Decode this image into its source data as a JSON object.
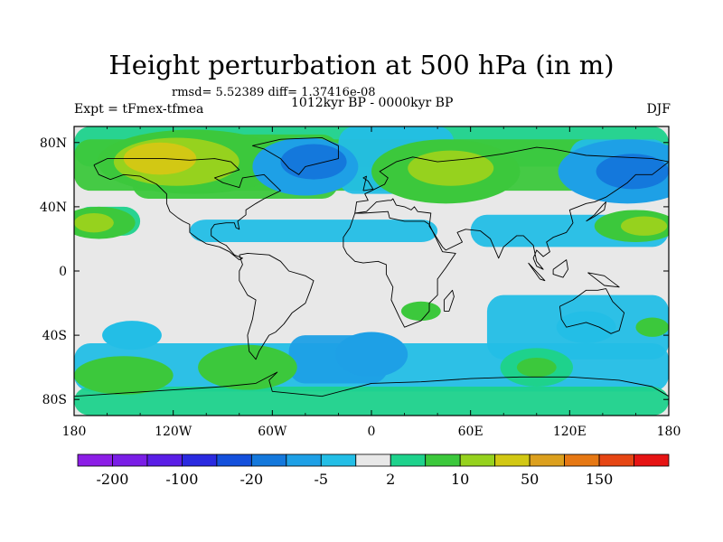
{
  "title": "Height perturbation at 500 hPa (in m)",
  "subtitle_stats": "rmsd= 5.52389 diff= 1.37416e-08",
  "subtitle_period": "1012kyr BP - 0000kyr BP",
  "left_label": "Expt = tFmex-tfmea",
  "right_label": "DJF",
  "axes": {
    "lat_ticks": [
      "80N",
      "40N",
      "0",
      "40S",
      "80S"
    ],
    "lon_ticks": [
      "180",
      "120W",
      "60W",
      "0",
      "60E",
      "120E",
      "180"
    ]
  },
  "colorbar": {
    "colors": [
      "#8c1ee6",
      "#7a1ee6",
      "#5a1ee6",
      "#2a2ae0",
      "#1450dc",
      "#1478dc",
      "#1ea0e6",
      "#23bee6",
      "#e8e8e8",
      "#1ed28c",
      "#3cc83c",
      "#96d21e",
      "#d2c814",
      "#dca01e",
      "#e67814",
      "#e64614",
      "#e61414"
    ],
    "labels": [
      "-200",
      "-100",
      "-20",
      "-5",
      "2",
      "10",
      "50",
      "150"
    ]
  },
  "field_blobs": [
    {
      "lon": -108,
      "lat": 68,
      "rx": 58,
      "ry": 20,
      "level": 10
    },
    {
      "lon": -118,
      "lat": 68,
      "rx": 38,
      "ry": 15,
      "level": 11
    },
    {
      "lon": -128,
      "lat": 70,
      "rx": 22,
      "ry": 10,
      "level": 12
    },
    {
      "lon": -40,
      "lat": 65,
      "rx": 32,
      "ry": 18,
      "level": 6
    },
    {
      "lon": -35,
      "lat": 68,
      "rx": 20,
      "ry": 11,
      "level": 5
    },
    {
      "lon": 45,
      "lat": 62,
      "rx": 45,
      "ry": 20,
      "level": 10
    },
    {
      "lon": 48,
      "lat": 64,
      "rx": 26,
      "ry": 11,
      "level": 11
    },
    {
      "lon": 155,
      "lat": 62,
      "rx": 42,
      "ry": 20,
      "level": 6
    },
    {
      "lon": 158,
      "lat": 62,
      "rx": 22,
      "ry": 11,
      "level": 5
    },
    {
      "lon": -165,
      "lat": 30,
      "rx": 22,
      "ry": 10,
      "level": 10
    },
    {
      "lon": -168,
      "lat": 30,
      "rx": 12,
      "ry": 6,
      "level": 11
    },
    {
      "lon": 160,
      "lat": 28,
      "rx": 25,
      "ry": 10,
      "level": 10
    },
    {
      "lon": 165,
      "lat": 28,
      "rx": 14,
      "ry": 6,
      "level": 11
    },
    {
      "lon": -145,
      "lat": -40,
      "rx": 18,
      "ry": 9,
      "level": 7
    },
    {
      "lon": -75,
      "lat": -60,
      "rx": 30,
      "ry": 14,
      "level": 10
    },
    {
      "lon": -150,
      "lat": -65,
      "rx": 30,
      "ry": 12,
      "level": 10
    },
    {
      "lon": 0,
      "lat": -52,
      "rx": 22,
      "ry": 14,
      "level": 6
    },
    {
      "lon": 30,
      "lat": -25,
      "rx": 12,
      "ry": 6,
      "level": 10
    },
    {
      "lon": 100,
      "lat": -60,
      "rx": 22,
      "ry": 12,
      "level": 9
    },
    {
      "lon": 100,
      "lat": -60,
      "rx": 12,
      "ry": 6,
      "level": 10
    },
    {
      "lon": 130,
      "lat": -35,
      "rx": 18,
      "ry": 10,
      "level": 7
    },
    {
      "lon": 170,
      "lat": -35,
      "rx": 10,
      "ry": 6,
      "level": 10
    }
  ],
  "coastlines": [
    [
      [
        -168,
        66
      ],
      [
        -160,
        70
      ],
      [
        -140,
        70
      ],
      [
        -125,
        70
      ],
      [
        -110,
        69
      ],
      [
        -95,
        70
      ],
      [
        -85,
        68
      ],
      [
        -80,
        63
      ],
      [
        -95,
        58
      ],
      [
        -90,
        55
      ],
      [
        -80,
        52
      ],
      [
        -78,
        58
      ],
      [
        -65,
        60
      ],
      [
        -60,
        55
      ],
      [
        -55,
        50
      ],
      [
        -65,
        45
      ],
      [
        -70,
        42
      ],
      [
        -76,
        38
      ],
      [
        -76,
        35
      ],
      [
        -81,
        31
      ],
      [
        -80,
        26
      ],
      [
        -82,
        27
      ],
      [
        -83,
        30
      ],
      [
        -88,
        30
      ],
      [
        -95,
        29
      ],
      [
        -97,
        26
      ],
      [
        -97,
        22
      ],
      [
        -92,
        18
      ],
      [
        -88,
        16
      ],
      [
        -83,
        10
      ],
      [
        -78,
        8
      ],
      [
        -80,
        7
      ],
      [
        -86,
        12
      ],
      [
        -92,
        15
      ],
      [
        -100,
        17
      ],
      [
        -105,
        20
      ],
      [
        -110,
        24
      ],
      [
        -110,
        29
      ],
      [
        -114,
        31
      ],
      [
        -117,
        33
      ],
      [
        -122,
        37
      ],
      [
        -124,
        42
      ],
      [
        -124,
        48
      ],
      [
        -130,
        54
      ],
      [
        -140,
        59
      ],
      [
        -150,
        60
      ],
      [
        -158,
        57
      ],
      [
        -165,
        60
      ],
      [
        -168,
        66
      ]
    ],
    [
      [
        -55,
        82
      ],
      [
        -30,
        83
      ],
      [
        -20,
        78
      ],
      [
        -20,
        70
      ],
      [
        -40,
        65
      ],
      [
        -44,
        60
      ],
      [
        -50,
        64
      ],
      [
        -55,
        70
      ],
      [
        -65,
        76
      ],
      [
        -72,
        78
      ],
      [
        -55,
        82
      ]
    ],
    [
      [
        -80,
        10
      ],
      [
        -75,
        11
      ],
      [
        -62,
        10
      ],
      [
        -55,
        6
      ],
      [
        -50,
        0
      ],
      [
        -40,
        -3
      ],
      [
        -35,
        -6
      ],
      [
        -37,
        -12
      ],
      [
        -40,
        -20
      ],
      [
        -48,
        -26
      ],
      [
        -53,
        -33
      ],
      [
        -58,
        -38
      ],
      [
        -62,
        -40
      ],
      [
        -65,
        -45
      ],
      [
        -68,
        -50
      ],
      [
        -70,
        -55
      ],
      [
        -74,
        -50
      ],
      [
        -75,
        -40
      ],
      [
        -72,
        -30
      ],
      [
        -70,
        -18
      ],
      [
        -75,
        -15
      ],
      [
        -80,
        -6
      ],
      [
        -80,
        0
      ],
      [
        -78,
        4
      ],
      [
        -80,
        10
      ]
    ],
    [
      [
        -10,
        36
      ],
      [
        -5,
        36
      ],
      [
        10,
        37
      ],
      [
        11,
        33
      ],
      [
        20,
        31
      ],
      [
        32,
        31
      ],
      [
        35,
        29
      ],
      [
        43,
        12
      ],
      [
        51,
        11
      ],
      [
        45,
        2
      ],
      [
        40,
        -5
      ],
      [
        40,
        -15
      ],
      [
        35,
        -20
      ],
      [
        35,
        -25
      ],
      [
        30,
        -31
      ],
      [
        20,
        -35
      ],
      [
        17,
        -29
      ],
      [
        12,
        -18
      ],
      [
        13,
        -10
      ],
      [
        9,
        -2
      ],
      [
        9,
        4
      ],
      [
        4,
        6
      ],
      [
        -5,
        5
      ],
      [
        -10,
        6
      ],
      [
        -15,
        11
      ],
      [
        -17,
        15
      ],
      [
        -17,
        21
      ],
      [
        -13,
        27
      ],
      [
        -10,
        36
      ]
    ],
    [
      [
        -10,
        36
      ],
      [
        -9,
        43
      ],
      [
        -2,
        44
      ],
      [
        -4,
        48
      ],
      [
        2,
        51
      ],
      [
        8,
        54
      ],
      [
        10,
        58
      ],
      [
        5,
        62
      ],
      [
        15,
        68
      ],
      [
        25,
        71
      ],
      [
        40,
        68
      ],
      [
        60,
        70
      ],
      [
        80,
        73
      ],
      [
        100,
        77
      ],
      [
        110,
        76
      ],
      [
        130,
        72
      ],
      [
        150,
        71
      ],
      [
        170,
        70
      ],
      [
        180,
        68
      ],
      [
        170,
        60
      ],
      [
        160,
        60
      ],
      [
        155,
        55
      ],
      [
        142,
        46
      ],
      [
        135,
        43
      ],
      [
        130,
        42
      ],
      [
        125,
        40
      ],
      [
        120,
        38
      ],
      [
        122,
        30
      ],
      [
        118,
        24
      ],
      [
        110,
        21
      ],
      [
        106,
        18
      ],
      [
        108,
        12
      ],
      [
        104,
        9
      ],
      [
        100,
        13
      ],
      [
        98,
        8
      ],
      [
        100,
        3
      ],
      [
        104,
        1
      ],
      [
        100,
        6
      ],
      [
        98,
        16
      ],
      [
        92,
        22
      ],
      [
        88,
        22
      ],
      [
        80,
        15
      ],
      [
        77,
        8
      ],
      [
        72,
        20
      ],
      [
        66,
        25
      ],
      [
        57,
        26
      ],
      [
        52,
        24
      ],
      [
        55,
        18
      ],
      [
        45,
        13
      ],
      [
        43,
        15
      ],
      [
        35,
        28
      ],
      [
        36,
        36
      ],
      [
        28,
        37
      ],
      [
        26,
        40
      ],
      [
        24,
        38
      ],
      [
        20,
        40
      ],
      [
        15,
        41
      ],
      [
        13,
        45
      ],
      [
        12,
        44
      ],
      [
        10,
        44
      ],
      [
        3,
        43
      ],
      [
        -3,
        37
      ],
      [
        -10,
        36
      ]
    ],
    [
      [
        114,
        -22
      ],
      [
        122,
        -18
      ],
      [
        130,
        -12
      ],
      [
        137,
        -12
      ],
      [
        142,
        -11
      ],
      [
        146,
        -19
      ],
      [
        153,
        -26
      ],
      [
        150,
        -37
      ],
      [
        145,
        -39
      ],
      [
        138,
        -35
      ],
      [
        130,
        -32
      ],
      [
        118,
        -35
      ],
      [
        115,
        -30
      ],
      [
        114,
        -22
      ]
    ],
    [
      [
        44,
        -25
      ],
      [
        47,
        -25
      ],
      [
        50,
        -16
      ],
      [
        49,
        -12
      ],
      [
        44,
        -18
      ],
      [
        44,
        -25
      ]
    ],
    [
      [
        95,
        5
      ],
      [
        105,
        -6
      ],
      [
        102,
        -5
      ],
      [
        95,
        5
      ]
    ],
    [
      [
        110,
        1
      ],
      [
        118,
        7
      ],
      [
        119,
        1
      ],
      [
        116,
        -4
      ],
      [
        110,
        -2
      ],
      [
        110,
        1
      ]
    ],
    [
      [
        131,
        -1
      ],
      [
        141,
        -3
      ],
      [
        150,
        -10
      ],
      [
        141,
        -9
      ],
      [
        131,
        -1
      ]
    ],
    [
      [
        130,
        31
      ],
      [
        135,
        34
      ],
      [
        141,
        38
      ],
      [
        142,
        43
      ],
      [
        140,
        41
      ],
      [
        135,
        35
      ],
      [
        130,
        31
      ]
    ],
    [
      [
        -5,
        50
      ],
      [
        1,
        51
      ],
      [
        -2,
        56
      ],
      [
        -5,
        58
      ],
      [
        -3,
        59
      ],
      [
        -5,
        50
      ]
    ],
    [
      [
        -180,
        -78
      ],
      [
        -150,
        -76
      ],
      [
        -120,
        -74
      ],
      [
        -90,
        -72
      ],
      [
        -70,
        -70
      ],
      [
        -57,
        -63
      ],
      [
        -62,
        -68
      ],
      [
        -60,
        -75
      ],
      [
        -30,
        -78
      ],
      [
        0,
        -70
      ],
      [
        30,
        -69
      ],
      [
        60,
        -67
      ],
      [
        90,
        -66
      ],
      [
        120,
        -66
      ],
      [
        150,
        -68
      ],
      [
        170,
        -72
      ],
      [
        180,
        -78
      ]
    ]
  ]
}
